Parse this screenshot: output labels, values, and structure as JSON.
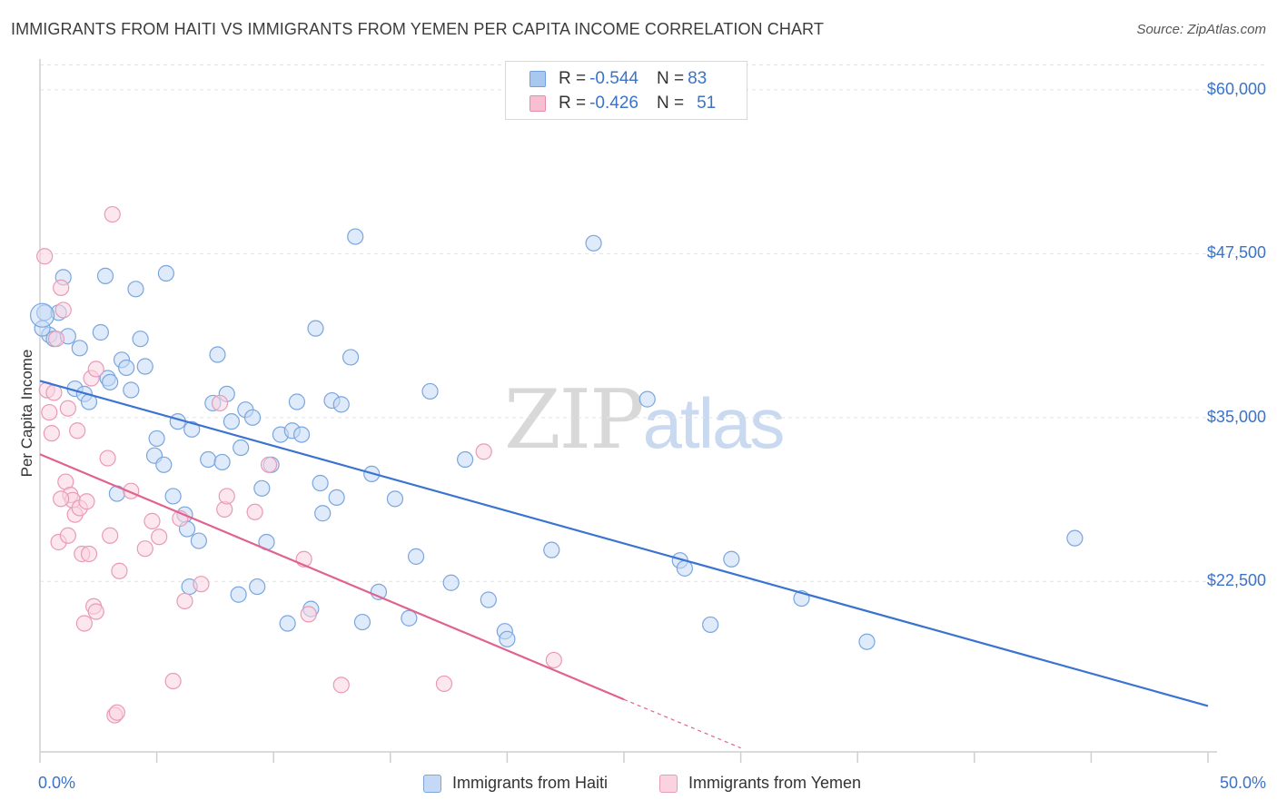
{
  "title": "IMMIGRANTS FROM HAITI VS IMMIGRANTS FROM YEMEN PER CAPITA INCOME CORRELATION CHART",
  "source": "Source: ZipAtlas.com",
  "watermark": {
    "zip": "ZIP",
    "atlas": "atlas"
  },
  "stats": [
    {
      "r_label": "R = ",
      "r_value": "-0.544",
      "n_label": "N = ",
      "n_value": "83",
      "color": "#a9c8f0",
      "border": "#6f9fdc"
    },
    {
      "r_label": "R = ",
      "r_value": "-0.426",
      "n_label": "N = ",
      "n_value": "51",
      "color": "#f7bfd1",
      "border": "#e88aa8"
    }
  ],
  "legend": [
    {
      "label": "Immigrants from Haiti",
      "color": "#c5d9f6",
      "border": "#7aa6de"
    },
    {
      "label": "Immigrants from Yemen",
      "color": "#fbd3e0",
      "border": "#e99ab4"
    }
  ],
  "chart_data": {
    "type": "scatter",
    "title": "IMMIGRANTS FROM HAITI VS IMMIGRANTS FROM YEMEN PER CAPITA INCOME CORRELATION CHART",
    "xlabel": "",
    "ylabel": "Per Capita Income",
    "xlim": [
      0,
      50
    ],
    "ylim": [
      9500,
      62000
    ],
    "x_tick_labels": [
      "0.0%",
      "50.0%"
    ],
    "y_ticks": [
      22500,
      35000,
      47500,
      60000
    ],
    "y_tick_labels": [
      "$22,500",
      "$35,000",
      "$47,500",
      "$60,000"
    ],
    "grid": true,
    "legend_position": "bottom",
    "series": [
      {
        "name": "Immigrants from Haiti",
        "color": "#7aa6de",
        "fill": "#c5d9f6",
        "line_color": "#3a74d0",
        "trend": {
          "x": [
            0,
            50
          ],
          "y": [
            37800,
            13000
          ]
        },
        "points": [
          [
            0.2,
            43000
          ],
          [
            0.4,
            41300
          ],
          [
            0.6,
            41000
          ],
          [
            0.8,
            43000
          ],
          [
            1.0,
            45700
          ],
          [
            1.2,
            41200
          ],
          [
            1.5,
            37200
          ],
          [
            1.7,
            40300
          ],
          [
            1.9,
            36800
          ],
          [
            2.1,
            36200
          ],
          [
            2.6,
            41500
          ],
          [
            2.8,
            45800
          ],
          [
            2.9,
            38000
          ],
          [
            3.0,
            37700
          ],
          [
            3.3,
            29200
          ],
          [
            3.5,
            39400
          ],
          [
            3.7,
            38800
          ],
          [
            3.9,
            37100
          ],
          [
            4.1,
            44800
          ],
          [
            4.3,
            41000
          ],
          [
            4.5,
            38900
          ],
          [
            4.9,
            32100
          ],
          [
            5.0,
            33400
          ],
          [
            5.3,
            31400
          ],
          [
            5.4,
            46000
          ],
          [
            5.7,
            29000
          ],
          [
            5.9,
            34700
          ],
          [
            6.2,
            27600
          ],
          [
            6.3,
            26500
          ],
          [
            6.4,
            22100
          ],
          [
            6.5,
            34100
          ],
          [
            6.8,
            25600
          ],
          [
            7.2,
            31800
          ],
          [
            7.4,
            36100
          ],
          [
            7.6,
            39800
          ],
          [
            7.8,
            31600
          ],
          [
            8.0,
            36800
          ],
          [
            8.2,
            34700
          ],
          [
            8.5,
            21500
          ],
          [
            8.6,
            32700
          ],
          [
            8.8,
            35600
          ],
          [
            9.1,
            35000
          ],
          [
            9.3,
            22100
          ],
          [
            9.5,
            29600
          ],
          [
            9.7,
            25500
          ],
          [
            9.9,
            31400
          ],
          [
            10.3,
            33700
          ],
          [
            10.6,
            19300
          ],
          [
            10.8,
            34000
          ],
          [
            11.0,
            36200
          ],
          [
            11.2,
            33700
          ],
          [
            11.6,
            20400
          ],
          [
            11.8,
            41800
          ],
          [
            12.0,
            30000
          ],
          [
            12.1,
            27700
          ],
          [
            12.5,
            36300
          ],
          [
            12.7,
            28900
          ],
          [
            12.9,
            36000
          ],
          [
            13.3,
            39600
          ],
          [
            13.5,
            48800
          ],
          [
            13.8,
            19400
          ],
          [
            14.2,
            30700
          ],
          [
            14.5,
            21700
          ],
          [
            15.2,
            28800
          ],
          [
            15.8,
            19700
          ],
          [
            16.1,
            24400
          ],
          [
            16.7,
            37000
          ],
          [
            17.6,
            22400
          ],
          [
            18.2,
            31800
          ],
          [
            19.2,
            21100
          ],
          [
            19.9,
            18700
          ],
          [
            20.0,
            18100
          ],
          [
            21.9,
            24900
          ],
          [
            23.7,
            48300
          ],
          [
            26.0,
            36400
          ],
          [
            27.4,
            24100
          ],
          [
            27.6,
            23500
          ],
          [
            28.7,
            19200
          ],
          [
            29.6,
            24200
          ],
          [
            32.6,
            21200
          ],
          [
            35.4,
            17900
          ],
          [
            44.3,
            25800
          ],
          [
            0.1,
            41800
          ]
        ]
      },
      {
        "name": "Immigrants from Yemen",
        "color": "#e99ab4",
        "fill": "#fbd3e0",
        "line_color": "#e0628f",
        "trend": {
          "x": [
            0,
            25
          ],
          "y": [
            32200,
            13500
          ]
        },
        "trend_dashed": {
          "x": [
            25,
            30
          ],
          "y": [
            13500,
            9800
          ]
        },
        "points": [
          [
            0.2,
            47300
          ],
          [
            0.3,
            37100
          ],
          [
            0.4,
            35400
          ],
          [
            0.5,
            33800
          ],
          [
            0.6,
            36900
          ],
          [
            0.7,
            41000
          ],
          [
            0.8,
            25500
          ],
          [
            0.9,
            44900
          ],
          [
            1.0,
            43200
          ],
          [
            1.1,
            30100
          ],
          [
            1.2,
            35700
          ],
          [
            1.2,
            26000
          ],
          [
            1.3,
            29100
          ],
          [
            1.4,
            28700
          ],
          [
            1.5,
            27600
          ],
          [
            1.6,
            34000
          ],
          [
            1.7,
            28100
          ],
          [
            1.8,
            24600
          ],
          [
            1.9,
            19300
          ],
          [
            2.0,
            28600
          ],
          [
            2.1,
            24600
          ],
          [
            2.2,
            38000
          ],
          [
            2.3,
            20600
          ],
          [
            2.4,
            38700
          ],
          [
            2.4,
            20200
          ],
          [
            2.9,
            31900
          ],
          [
            3.0,
            26000
          ],
          [
            3.1,
            50500
          ],
          [
            3.2,
            12300
          ],
          [
            3.3,
            12500
          ],
          [
            3.4,
            23300
          ],
          [
            3.9,
            29400
          ],
          [
            4.5,
            25000
          ],
          [
            4.8,
            27100
          ],
          [
            5.1,
            25900
          ],
          [
            5.7,
            14900
          ],
          [
            6.0,
            27300
          ],
          [
            6.2,
            21000
          ],
          [
            6.9,
            22300
          ],
          [
            7.7,
            36100
          ],
          [
            7.9,
            28000
          ],
          [
            8.0,
            29000
          ],
          [
            9.2,
            27800
          ],
          [
            9.8,
            31400
          ],
          [
            11.3,
            24200
          ],
          [
            11.5,
            20000
          ],
          [
            12.9,
            14600
          ],
          [
            17.3,
            14700
          ],
          [
            19.0,
            32400
          ],
          [
            22.0,
            16500
          ],
          [
            0.9,
            28800
          ]
        ]
      }
    ]
  }
}
